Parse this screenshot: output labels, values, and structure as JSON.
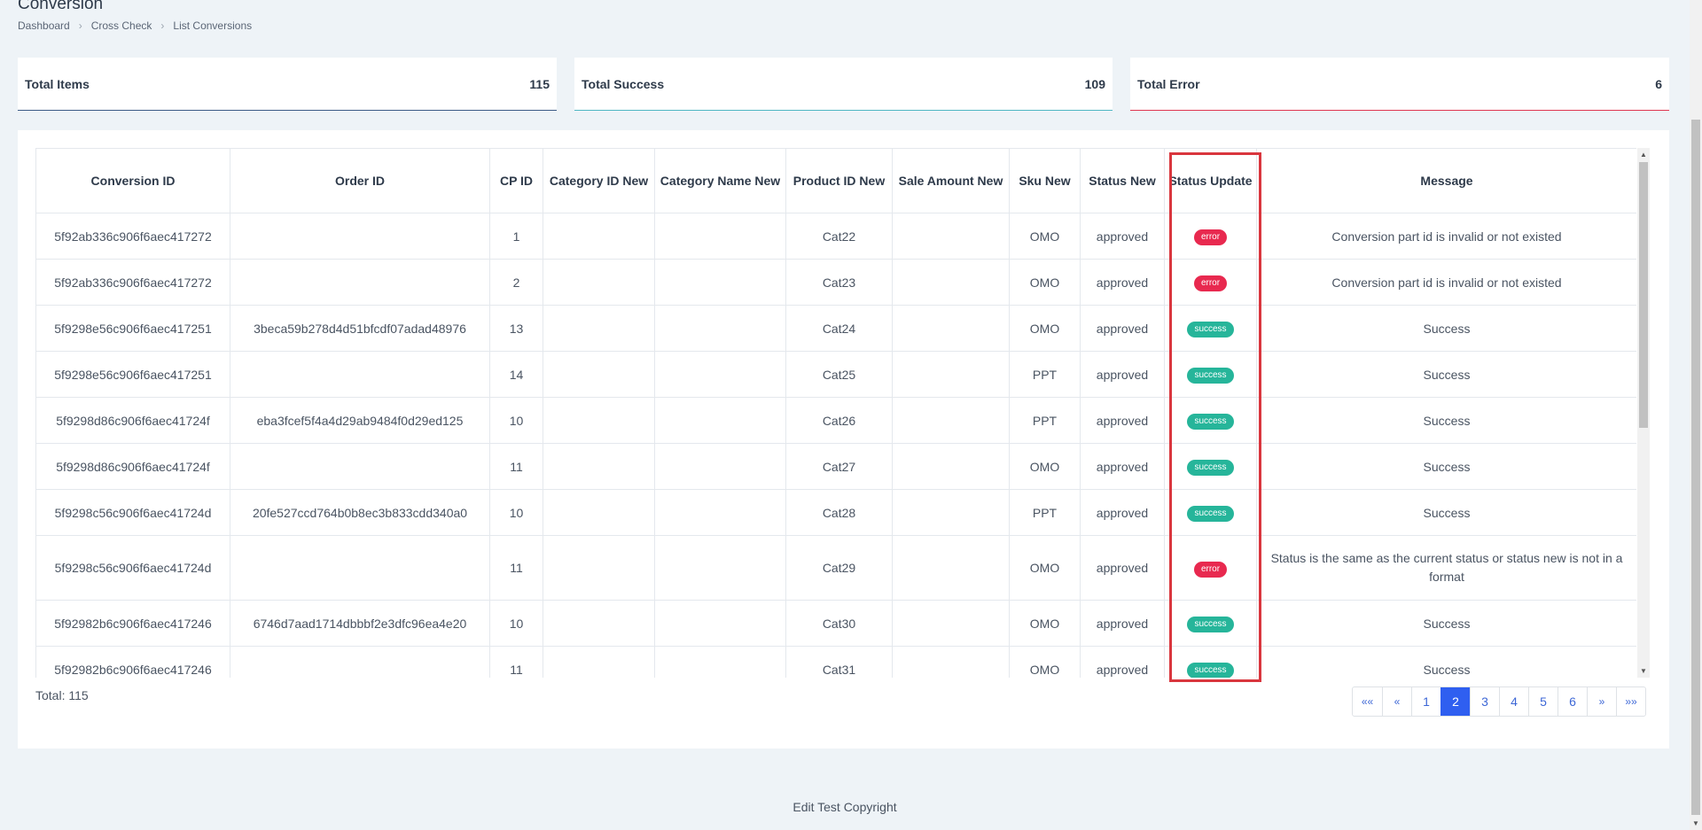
{
  "page": {
    "title": "Conversion"
  },
  "breadcrumb": [
    "Dashboard",
    "Cross Check",
    "List Conversions"
  ],
  "stats": {
    "items": {
      "label": "Total Items",
      "value": "115",
      "color": "#3b5a86"
    },
    "success": {
      "label": "Total Success",
      "value": "109",
      "color": "#4fb7c3"
    },
    "error": {
      "label": "Total Error",
      "value": "6",
      "color": "#e0364f"
    }
  },
  "table": {
    "headers": [
      "Conversion ID",
      "Order ID",
      "CP ID",
      "Category ID New",
      "Category Name New",
      "Product ID New",
      "Sale Amount New",
      "Sku New",
      "Status New",
      "Status Update",
      "Message"
    ],
    "rows": [
      {
        "conversion_id": "5f92ab336c906f6aec417272",
        "order_id": "",
        "cp_id": "1",
        "category_id_new": "",
        "category_name_new": "",
        "product_id_new": "Cat22",
        "sale_amount_new": "",
        "sku_new": "OMO",
        "status_new": "approved",
        "status_update": "error",
        "message": "Conversion part id is invalid or not existed"
      },
      {
        "conversion_id": "5f92ab336c906f6aec417272",
        "order_id": "",
        "cp_id": "2",
        "category_id_new": "",
        "category_name_new": "",
        "product_id_new": "Cat23",
        "sale_amount_new": "",
        "sku_new": "OMO",
        "status_new": "approved",
        "status_update": "error",
        "message": "Conversion part id is invalid or not existed"
      },
      {
        "conversion_id": "5f9298e56c906f6aec417251",
        "order_id": "3beca59b278d4d51bfcdf07adad48976",
        "cp_id": "13",
        "category_id_new": "",
        "category_name_new": "",
        "product_id_new": "Cat24",
        "sale_amount_new": "",
        "sku_new": "OMO",
        "status_new": "approved",
        "status_update": "success",
        "message": "Success"
      },
      {
        "conversion_id": "5f9298e56c906f6aec417251",
        "order_id": "",
        "cp_id": "14",
        "category_id_new": "",
        "category_name_new": "",
        "product_id_new": "Cat25",
        "sale_amount_new": "",
        "sku_new": "PPT",
        "status_new": "approved",
        "status_update": "success",
        "message": "Success"
      },
      {
        "conversion_id": "5f9298d86c906f6aec41724f",
        "order_id": "eba3fcef5f4a4d29ab9484f0d29ed125",
        "cp_id": "10",
        "category_id_new": "",
        "category_name_new": "",
        "product_id_new": "Cat26",
        "sale_amount_new": "",
        "sku_new": "PPT",
        "status_new": "approved",
        "status_update": "success",
        "message": "Success"
      },
      {
        "conversion_id": "5f9298d86c906f6aec41724f",
        "order_id": "",
        "cp_id": "11",
        "category_id_new": "",
        "category_name_new": "",
        "product_id_new": "Cat27",
        "sale_amount_new": "",
        "sku_new": "OMO",
        "status_new": "approved",
        "status_update": "success",
        "message": "Success"
      },
      {
        "conversion_id": "5f9298c56c906f6aec41724d",
        "order_id": "20fe527ccd764b0b8ec3b833cdd340a0",
        "cp_id": "10",
        "category_id_new": "",
        "category_name_new": "",
        "product_id_new": "Cat28",
        "sale_amount_new": "",
        "sku_new": "PPT",
        "status_new": "approved",
        "status_update": "success",
        "message": "Success"
      },
      {
        "conversion_id": "5f9298c56c906f6aec41724d",
        "order_id": "",
        "cp_id": "11",
        "category_id_new": "",
        "category_name_new": "",
        "product_id_new": "Cat29",
        "sale_amount_new": "",
        "sku_new": "OMO",
        "status_new": "approved",
        "status_update": "error",
        "message": "Status is the same as the current status or status new is not in a format"
      },
      {
        "conversion_id": "5f92982b6c906f6aec417246",
        "order_id": "6746d7aad1714dbbbf2e3dfc96ea4e20",
        "cp_id": "10",
        "category_id_new": "",
        "category_name_new": "",
        "product_id_new": "Cat30",
        "sale_amount_new": "",
        "sku_new": "OMO",
        "status_new": "approved",
        "status_update": "success",
        "message": "Success"
      },
      {
        "conversion_id": "5f92982b6c906f6aec417246",
        "order_id": "",
        "cp_id": "11",
        "category_id_new": "",
        "category_name_new": "",
        "product_id_new": "Cat31",
        "sale_amount_new": "",
        "sku_new": "OMO",
        "status_new": "approved",
        "status_update": "success",
        "message": "Success"
      }
    ]
  },
  "total": {
    "label": "Total: 115"
  },
  "pagination": {
    "first": "««",
    "prev": "«",
    "pages": [
      "1",
      "2",
      "3",
      "4",
      "5",
      "6"
    ],
    "active": "2",
    "next": "»",
    "last": "»»",
    "active_color": "#2f5ff0"
  },
  "badge_colors": {
    "error": "#e8294f",
    "success": "#26b59a"
  },
  "highlight_color": "#d9363e",
  "footer": {
    "text": "Edit Test Copyright"
  }
}
